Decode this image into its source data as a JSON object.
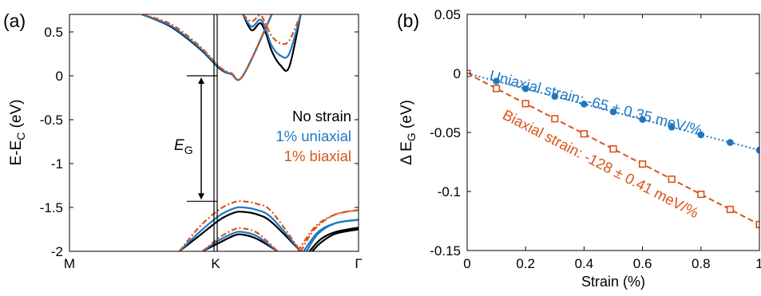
{
  "panels": {
    "a": {
      "label": "(a)"
    },
    "b": {
      "label": "(b)"
    }
  },
  "chart_data": [
    {
      "panel": "(a)",
      "type": "line",
      "xlabel": "",
      "ylabel": "E-E_C (eV)",
      "ylabel_main": "E-E",
      "ylabel_sub": "C",
      "ylabel_unit": "(eV)",
      "ylim": [
        -2,
        0.7
      ],
      "yticks": [
        0.5,
        0,
        -0.5,
        -1,
        -1.5,
        -2
      ],
      "ytick_labels": [
        "0.5",
        "0",
        "-0.5",
        "-1",
        "-1.5",
        "-2"
      ],
      "xtick_labels": [
        "M",
        "K",
        "Γ"
      ],
      "grid": false,
      "legend": {
        "placement": "right",
        "entries": [
          {
            "text": "No strain",
            "color": "#000000",
            "style": "solid"
          },
          {
            "text": "1% uniaxial",
            "color": "#1f77c2",
            "style": "solid"
          },
          {
            "text": "1% biaxial",
            "color": "#d95319",
            "style": "dashdot"
          }
        ]
      },
      "annotation": {
        "text": "E",
        "sub": "G",
        "from": 0,
        "to": -1.43
      },
      "series": [
        {
          "color": "#000000",
          "style": "solid",
          "bands": [
            {
              "x": [
                0.25,
                0.35,
                0.45,
                0.52,
                0.56,
                0.6,
                0.7
              ],
              "y": [
                0.7,
                0.56,
                0.31,
                0.08,
                0.02,
                0,
                0.7
              ]
            },
            {
              "x": [
                0.6,
                0.63,
                0.66,
                0.68,
                0.7,
                0.73,
                0.76,
                0.8
              ],
              "y": [
                0.7,
                0.52,
                0.6,
                0.48,
                0.28,
                0.12,
                0.1,
                0.7
              ]
            },
            {
              "x": [
                0.38,
                0.45,
                0.52,
                0.57,
                0.6,
                0.65,
                0.7,
                0.8
              ],
              "y": [
                -2.0,
                -1.82,
                -1.64,
                -1.56,
                -1.55,
                -1.58,
                -1.67,
                -2.0
              ]
            },
            {
              "x": [
                0.46,
                0.52,
                0.57,
                0.6,
                0.65,
                0.72
              ],
              "y": [
                -2.0,
                -1.9,
                -1.82,
                -1.81,
                -1.86,
                -2.0
              ]
            },
            {
              "x": [
                0.84,
                0.87,
                0.92,
                1.0
              ],
              "y": [
                -2.0,
                -1.9,
                -1.8,
                -1.75
              ]
            },
            {
              "x": [
                0.83,
                0.87,
                0.92,
                1.0
              ],
              "y": [
                -2.0,
                -1.86,
                -1.78,
                -1.73
              ]
            }
          ]
        },
        {
          "color": "#1f77c2",
          "style": "solid",
          "bands": [
            {
              "x": [
                0.25,
                0.35,
                0.45,
                0.52,
                0.56,
                0.6,
                0.7
              ],
              "y": [
                0.7,
                0.57,
                0.32,
                0.09,
                0.02,
                0,
                0.7
              ]
            },
            {
              "x": [
                0.6,
                0.63,
                0.66,
                0.68,
                0.7,
                0.73,
                0.76,
                0.8
              ],
              "y": [
                0.7,
                0.56,
                0.64,
                0.52,
                0.34,
                0.23,
                0.25,
                0.7
              ]
            },
            {
              "x": [
                0.38,
                0.45,
                0.52,
                0.57,
                0.6,
                0.65,
                0.7,
                0.8
              ],
              "y": [
                -2.0,
                -1.78,
                -1.59,
                -1.51,
                -1.5,
                -1.53,
                -1.62,
                -2.0
              ]
            },
            {
              "x": [
                0.46,
                0.52,
                0.57,
                0.6,
                0.65,
                0.72
              ],
              "y": [
                -2.0,
                -1.87,
                -1.79,
                -1.78,
                -1.83,
                -2.0
              ]
            },
            {
              "x": [
                0.82,
                0.86,
                0.92,
                1.0
              ],
              "y": [
                -2.0,
                -1.8,
                -1.68,
                -1.64
              ]
            },
            {
              "x": [
                0.81,
                0.86,
                0.92,
                1.0
              ],
              "y": [
                -2.0,
                -1.78,
                -1.68,
                -1.64
              ]
            }
          ]
        },
        {
          "color": "#d95319",
          "style": "dashdot",
          "bands": [
            {
              "x": [
                0.25,
                0.35,
                0.45,
                0.52,
                0.56,
                0.6,
                0.7
              ],
              "y": [
                0.7,
                0.59,
                0.34,
                0.1,
                0.03,
                0,
                0.7
              ]
            },
            {
              "x": [
                0.6,
                0.63,
                0.66,
                0.68,
                0.7,
                0.73,
                0.76,
                0.8
              ],
              "y": [
                0.7,
                0.62,
                0.69,
                0.58,
                0.45,
                0.37,
                0.4,
                0.7
              ]
            },
            {
              "x": [
                0.38,
                0.45,
                0.52,
                0.57,
                0.6,
                0.65,
                0.7,
                0.8
              ],
              "y": [
                -2.0,
                -1.72,
                -1.52,
                -1.44,
                -1.43,
                -1.46,
                -1.55,
                -2.0
              ]
            },
            {
              "x": [
                0.46,
                0.52,
                0.57,
                0.6,
                0.65,
                0.72
              ],
              "y": [
                -2.0,
                -1.84,
                -1.75,
                -1.74,
                -1.79,
                -2.0
              ]
            },
            {
              "x": [
                0.8,
                0.85,
                0.92,
                1.0
              ],
              "y": [
                -2.0,
                -1.74,
                -1.58,
                -1.53
              ]
            },
            {
              "x": [
                0.79,
                0.85,
                0.92,
                1.0
              ],
              "y": [
                -2.0,
                -1.72,
                -1.58,
                -1.53
              ]
            }
          ]
        }
      ]
    },
    {
      "panel": "(b)",
      "type": "scatter",
      "xlabel": "Strain (%)",
      "ylabel": "ΔE_G (eV)",
      "ylabel_main": "Δ E",
      "ylabel_sub": "G",
      "ylabel_unit": "(eV)",
      "xlim": [
        0,
        1
      ],
      "ylim": [
        -0.15,
        0.05
      ],
      "xticks": [
        0,
        0.2,
        0.4,
        0.6,
        0.8,
        1
      ],
      "xtick_labels": [
        "0",
        "0.2",
        "0.4",
        "0.6",
        "0.8",
        "1"
      ],
      "yticks": [
        0.05,
        0,
        -0.05,
        -0.1,
        -0.15
      ],
      "ytick_labels": [
        "0.05",
        "0",
        "-0.05",
        "-0.1",
        "-0.15"
      ],
      "grid": false,
      "series": [
        {
          "color": "#1f77c2",
          "marker": "filled-circle",
          "line": "dotted",
          "x": [
            0,
            0.1,
            0.2,
            0.3,
            0.4,
            0.5,
            0.6,
            0.7,
            0.8,
            0.9,
            1.0
          ],
          "y": [
            0,
            -0.0065,
            -0.013,
            -0.0195,
            -0.026,
            -0.0325,
            -0.039,
            -0.0455,
            -0.052,
            -0.0585,
            -0.065
          ],
          "label": "Uniaxial strain: -65 ± 0.35 meV/%"
        },
        {
          "color": "#d95319",
          "marker": "open-square",
          "line": "dashed",
          "x": [
            0,
            0.1,
            0.2,
            0.3,
            0.4,
            0.5,
            0.6,
            0.7,
            0.8,
            0.9,
            1.0
          ],
          "y": [
            0,
            -0.0128,
            -0.0256,
            -0.0384,
            -0.0512,
            -0.064,
            -0.0768,
            -0.0896,
            -0.1024,
            -0.1152,
            -0.128
          ],
          "label": "Biaxial strain: -128 ± 0.41 meV/%"
        }
      ]
    }
  ]
}
